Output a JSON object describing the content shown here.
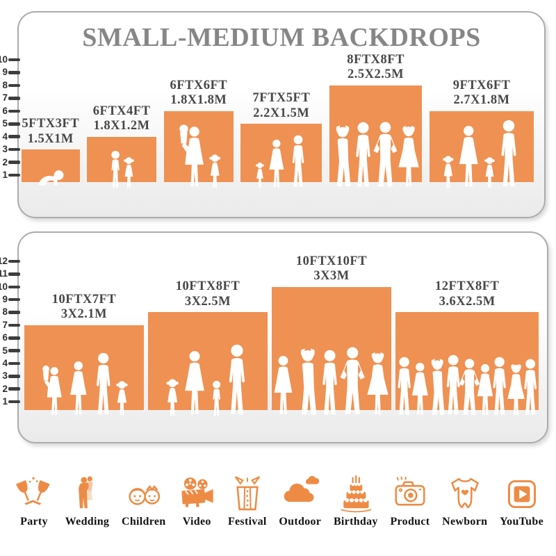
{
  "title": "SMALL-MEDIUM BACKDROPS",
  "colors": {
    "accent": "#EF9152",
    "icon_accent": "#ED8B45",
    "title_gray": "#868686",
    "label_gray": "#474747",
    "ruler_dark": "#3D3D3D",
    "floor_gray": "#DCDCDC",
    "panel_border": "#ABABAB",
    "figure_white": "#FFFFFF"
  },
  "panels": [
    {
      "ruler_max": 10,
      "bars": [
        {
          "label_ft": "5FTX3FT",
          "label_m": "1.5X1M",
          "width_ft": 5,
          "height_ft": 3,
          "figures": [
            {
              "type": "baby",
              "s": 0.62
            }
          ]
        },
        {
          "label_ft": "6FTX4FT",
          "label_m": "1.8X1.2M",
          "width_ft": 6,
          "height_ft": 4,
          "figures": [
            {
              "type": "boy",
              "s": 0.86
            },
            {
              "type": "girl",
              "s": 0.72
            }
          ]
        },
        {
          "label_ft": "6FTX6FT",
          "label_m": "1.8X1.8M",
          "width_ft": 6,
          "height_ft": 6,
          "figures": [
            {
              "type": "womancarry",
              "s": 0.93
            },
            {
              "type": "girl",
              "s": 0.5
            }
          ]
        },
        {
          "label_ft": "7FTX5FT",
          "label_m": "2.2X1.5M",
          "width_ft": 7,
          "height_ft": 5,
          "figures": [
            {
              "type": "girl",
              "s": 0.46
            },
            {
              "type": "woman",
              "s": 0.86
            },
            {
              "type": "man",
              "s": 0.93
            }
          ]
        },
        {
          "label_ft": "8FTX8FT",
          "label_m": "2.5X2.5M",
          "width_ft": 8,
          "height_ft": 8,
          "figures": [
            {
              "type": "manhead",
              "s": 0.66
            },
            {
              "type": "man",
              "s": 0.7
            },
            {
              "type": "manhips",
              "s": 0.7
            },
            {
              "type": "womanpose",
              "s": 0.66
            }
          ]
        },
        {
          "label_ft": "9FTX6FT",
          "label_m": "2.7X1.8M",
          "width_ft": 9,
          "height_ft": 6,
          "figures": [
            {
              "type": "girl",
              "s": 0.48
            },
            {
              "type": "woman",
              "s": 0.9
            },
            {
              "type": "girl",
              "s": 0.46
            },
            {
              "type": "man",
              "s": 0.98
            }
          ]
        }
      ]
    },
    {
      "ruler_max": 12,
      "bars": [
        {
          "label_ft": "10FTX7FT",
          "label_m": "3X2.1M",
          "width_ft": 10,
          "height_ft": 7,
          "figures": [
            {
              "type": "womancarry",
              "s": 0.62
            },
            {
              "type": "woman",
              "s": 0.66
            },
            {
              "type": "man",
              "s": 0.76
            },
            {
              "type": "girl",
              "s": 0.43
            }
          ]
        },
        {
          "label_ft": "10FTX8FT",
          "label_m": "3X2.5M",
          "width_ft": 10,
          "height_ft": 8,
          "figures": [
            {
              "type": "girl",
              "s": 0.4
            },
            {
              "type": "woman",
              "s": 0.68
            },
            {
              "type": "boy",
              "s": 0.38
            },
            {
              "type": "man",
              "s": 0.75
            }
          ]
        },
        {
          "label_ft": "10FTX10FT",
          "label_m": "3X3M",
          "width_ft": 10,
          "height_ft": 10,
          "figures": [
            {
              "type": "woman",
              "s": 0.5
            },
            {
              "type": "manhead",
              "s": 0.56
            },
            {
              "type": "man",
              "s": 0.55
            },
            {
              "type": "manhips",
              "s": 0.57
            },
            {
              "type": "womanpose",
              "s": 0.53
            }
          ]
        },
        {
          "label_ft": "12FTX8FT",
          "label_m": "3.6X2.5M",
          "width_ft": 12,
          "height_ft": 8,
          "figures": [
            {
              "type": "man",
              "s": 0.62
            },
            {
              "type": "woman",
              "s": 0.56
            },
            {
              "type": "manhead",
              "s": 0.6
            },
            {
              "type": "man",
              "s": 0.64
            },
            {
              "type": "manhips",
              "s": 0.6
            },
            {
              "type": "woman",
              "s": 0.55
            },
            {
              "type": "man",
              "s": 0.62
            },
            {
              "type": "womanpose",
              "s": 0.55
            },
            {
              "type": "man",
              "s": 0.6
            }
          ]
        }
      ]
    }
  ],
  "categories": [
    {
      "label": "Party",
      "icon": "party"
    },
    {
      "label": "Wedding",
      "icon": "wedding"
    },
    {
      "label": "Children",
      "icon": "children"
    },
    {
      "label": "Video",
      "icon": "video"
    },
    {
      "label": "Festival",
      "icon": "festival"
    },
    {
      "label": "Outdoor",
      "icon": "outdoor"
    },
    {
      "label": "Birthday",
      "icon": "birthday"
    },
    {
      "label": "Product",
      "icon": "product"
    },
    {
      "label": "Newborn",
      "icon": "newborn"
    },
    {
      "label": "YouTube",
      "icon": "youtube"
    }
  ],
  "chart_data": [
    {
      "type": "bar",
      "title": "SMALL-MEDIUM BACKDROPS",
      "categories": [
        "5FTX3FT",
        "6FTX4FT",
        "6FTX6FT",
        "7FTX5FT",
        "8FTX8FT",
        "9FTX6FT"
      ],
      "values": [
        3,
        4,
        6,
        5,
        8,
        6
      ],
      "bar_widths_ft": [
        5,
        6,
        6,
        7,
        8,
        9
      ],
      "metric_labels": [
        "1.5X1M",
        "1.8X1.2M",
        "1.8X1.8M",
        "2.2X1.5M",
        "2.5X2.5M",
        "2.7X1.8M"
      ],
      "xlabel": "",
      "ylabel": "height in feet (ruler)",
      "ylim": [
        0,
        10
      ],
      "legend": "none",
      "grid": false,
      "bar_color": "#EF9152"
    },
    {
      "type": "bar",
      "title": "",
      "categories": [
        "10FTX7FT",
        "10FTX8FT",
        "10FTX10FT",
        "12FTX8FT"
      ],
      "values": [
        7,
        8,
        10,
        8
      ],
      "bar_widths_ft": [
        10,
        10,
        10,
        12
      ],
      "metric_labels": [
        "3X2.1M",
        "3X2.5M",
        "3X3M",
        "3.6X2.5M"
      ],
      "xlabel": "",
      "ylabel": "height in feet (ruler)",
      "ylim": [
        0,
        12
      ],
      "legend": "none",
      "grid": false,
      "bar_color": "#EF9152"
    }
  ]
}
